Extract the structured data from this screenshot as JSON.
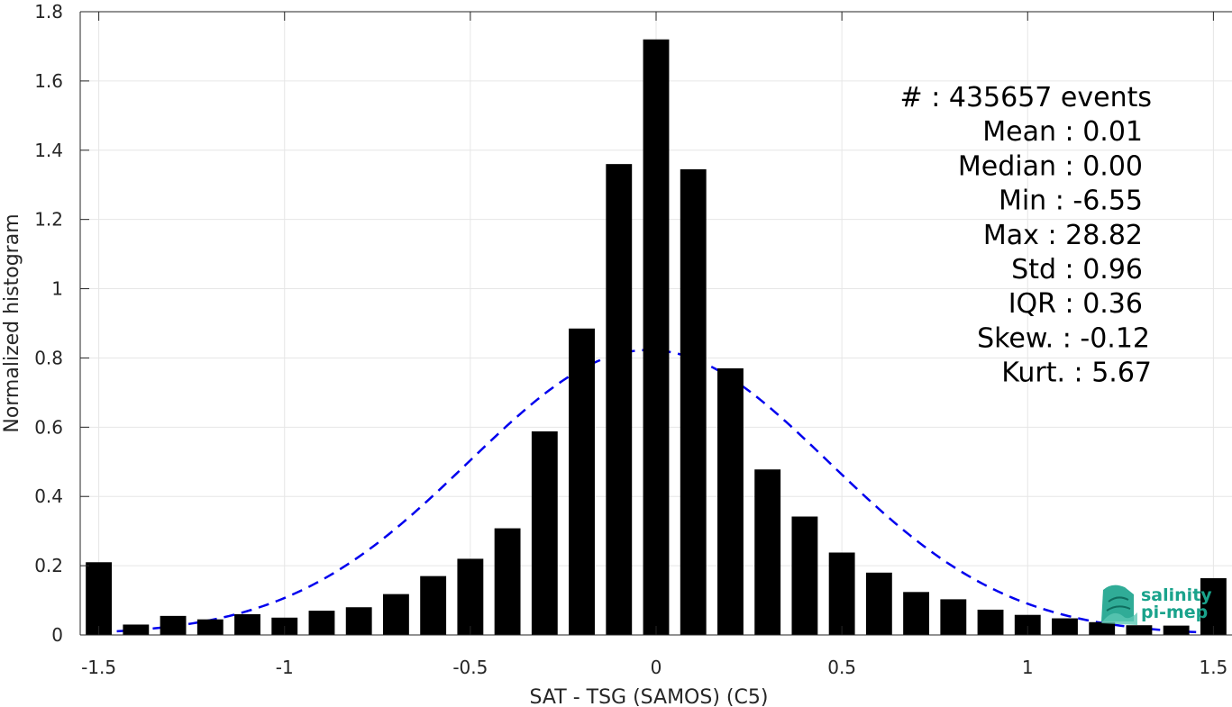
{
  "chart_data": {
    "type": "bar",
    "title": "",
    "xlabel": "SAT - TSG (SAMOS) (C5)",
    "ylabel": "Normalized histogram",
    "xlim": [
      -1.55,
      1.55
    ],
    "ylim": [
      0,
      1.8
    ],
    "grid": true,
    "x_ticks": [
      -1.5,
      -1,
      -0.5,
      0,
      0.5,
      1,
      1.5
    ],
    "x_tick_labels": [
      "-1.5",
      "-1",
      "-0.5",
      "0",
      "0.5",
      "1",
      "1.5"
    ],
    "y_ticks": [
      0,
      0.2,
      0.4,
      0.6,
      0.8,
      1,
      1.2,
      1.4,
      1.6,
      1.8
    ],
    "y_tick_labels": [
      "0",
      "0.2",
      "0.4",
      "0.6",
      "0.8",
      "1",
      "1.2",
      "1.4",
      "1.6",
      "1.8"
    ],
    "bin_width": 0.07,
    "bins": {
      "x": [
        -1.5,
        -1.4,
        -1.3,
        -1.2,
        -1.1,
        -1.0,
        -0.9,
        -0.8,
        -0.7,
        -0.6,
        -0.5,
        -0.4,
        -0.3,
        -0.2,
        -0.1,
        0.0,
        0.1,
        0.2,
        0.3,
        0.4,
        0.5,
        0.6,
        0.7,
        0.8,
        0.9,
        1.0,
        1.1,
        1.2,
        1.3,
        1.4,
        1.5
      ],
      "values": [
        0.21,
        0.03,
        0.055,
        0.045,
        0.06,
        0.05,
        0.07,
        0.08,
        0.118,
        0.17,
        0.22,
        0.308,
        0.588,
        0.885,
        1.36,
        1.72,
        1.345,
        0.77,
        0.478,
        0.342,
        0.238,
        0.18,
        0.124,
        0.103,
        0.073,
        0.058,
        0.048,
        0.037,
        0.028,
        0.027,
        0.164
      ]
    },
    "fit_curve": {
      "type": "gaussian",
      "style": "dashed",
      "color": "#0000ee",
      "mean": -0.02,
      "sigma": 0.485,
      "peak": 0.823
    },
    "bar_color": "#000000",
    "stats": [
      {
        "label": "#  ",
        "value": ": 435657 events"
      },
      {
        "label": "Mean",
        "value": ": 0.01"
      },
      {
        "label": "Median",
        "value": ": 0.00"
      },
      {
        "label": "Min",
        "value": ": -6.55"
      },
      {
        "label": "Max",
        "value": ": 28.82"
      },
      {
        "label": "Std",
        "value": ": 0.96"
      },
      {
        "label": "IQR",
        "value": ": 0.36"
      },
      {
        "label": "Skew.",
        "value": ": -0.12"
      },
      {
        "label": "Kurt.",
        "value": ": 5.67"
      }
    ]
  },
  "logo": {
    "line1": "salinity",
    "line2": "pi-mep",
    "color": "#1aa38c"
  }
}
